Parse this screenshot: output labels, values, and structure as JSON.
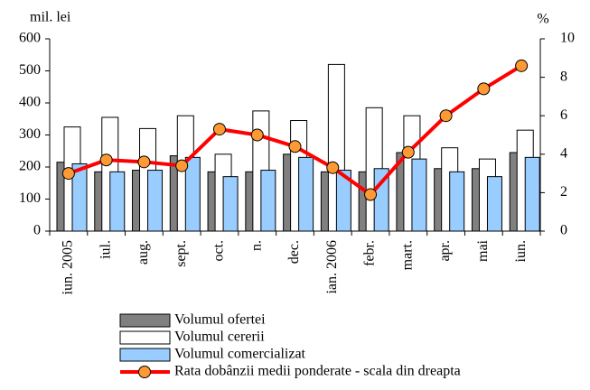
{
  "chart_data": {
    "type": "bar_line",
    "y_label": "mil. lei",
    "y2_label": "%",
    "categories": [
      "iun. 2005",
      "iul.",
      "aug.",
      "sept.",
      "oct.",
      "n.",
      "dec.",
      "ian. 2006",
      "febr.",
      "mart.",
      "apr.",
      "mai",
      "iun."
    ],
    "series": [
      {
        "name": "Volumul ofertei",
        "type": "bar",
        "color": "#808080",
        "values": [
          215,
          185,
          190,
          235,
          185,
          185,
          240,
          185,
          185,
          245,
          195,
          195,
          245
        ]
      },
      {
        "name": "Volumul cererii",
        "type": "bar",
        "color": "#ffffff",
        "values": [
          325,
          355,
          320,
          360,
          240,
          375,
          345,
          520,
          385,
          360,
          260,
          225,
          315
        ]
      },
      {
        "name": "Volumul comercializat",
        "type": "bar",
        "color": "#99ccff",
        "values": [
          210,
          185,
          190,
          230,
          170,
          190,
          230,
          190,
          195,
          225,
          185,
          170,
          230
        ]
      },
      {
        "name": "Rata dobânzii medii ponderate  - scala din dreapta",
        "type": "line",
        "axis": "y2",
        "color": "#ff0000",
        "marker_color": "#ff9933",
        "values": [
          3.0,
          3.7,
          3.6,
          3.4,
          5.3,
          5.0,
          4.4,
          3.3,
          1.9,
          4.1,
          6.0,
          7.4,
          8.6
        ]
      }
    ],
    "ylim": [
      0,
      600
    ],
    "yticks": [
      0,
      100,
      200,
      300,
      400,
      500,
      600
    ],
    "y2lim": [
      0,
      10
    ],
    "y2ticks": [
      0,
      2,
      4,
      6,
      8,
      10
    ]
  }
}
